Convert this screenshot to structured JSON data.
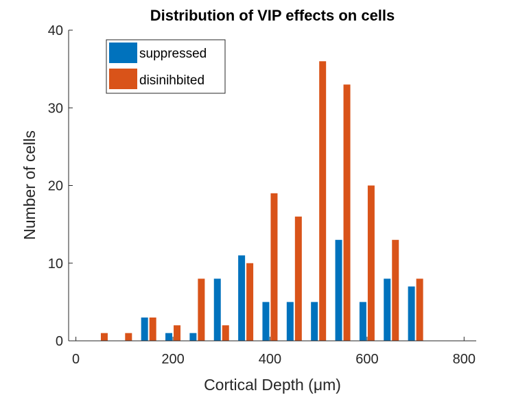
{
  "chart_data": {
    "type": "bar",
    "title": "Distribution of VIP effects on cells",
    "xlabel": "Cortical Depth (μm)",
    "ylabel": "Number of cells",
    "xlim": [
      -15,
      825
    ],
    "ylim": [
      0,
      40
    ],
    "xticks": [
      0,
      200,
      400,
      600,
      800
    ],
    "yticks": [
      0,
      10,
      20,
      30,
      40
    ],
    "x": [
      0,
      50,
      100,
      150,
      200,
      250,
      300,
      350,
      400,
      450,
      500,
      550,
      600,
      650,
      700,
      750,
      800
    ],
    "series": [
      {
        "name": "suppressed",
        "color": "#0072BD",
        "values": [
          0,
          0,
          0,
          3,
          1,
          1,
          8,
          11,
          5,
          5,
          5,
          13,
          5,
          8,
          7,
          0,
          0
        ]
      },
      {
        "name": "disinihbited",
        "color": "#D95319",
        "values": [
          0,
          1,
          1,
          3,
          2,
          8,
          2,
          10,
          19,
          16,
          36,
          33,
          20,
          13,
          8,
          0,
          0
        ]
      }
    ],
    "legend": "top-left",
    "grid": false
  }
}
